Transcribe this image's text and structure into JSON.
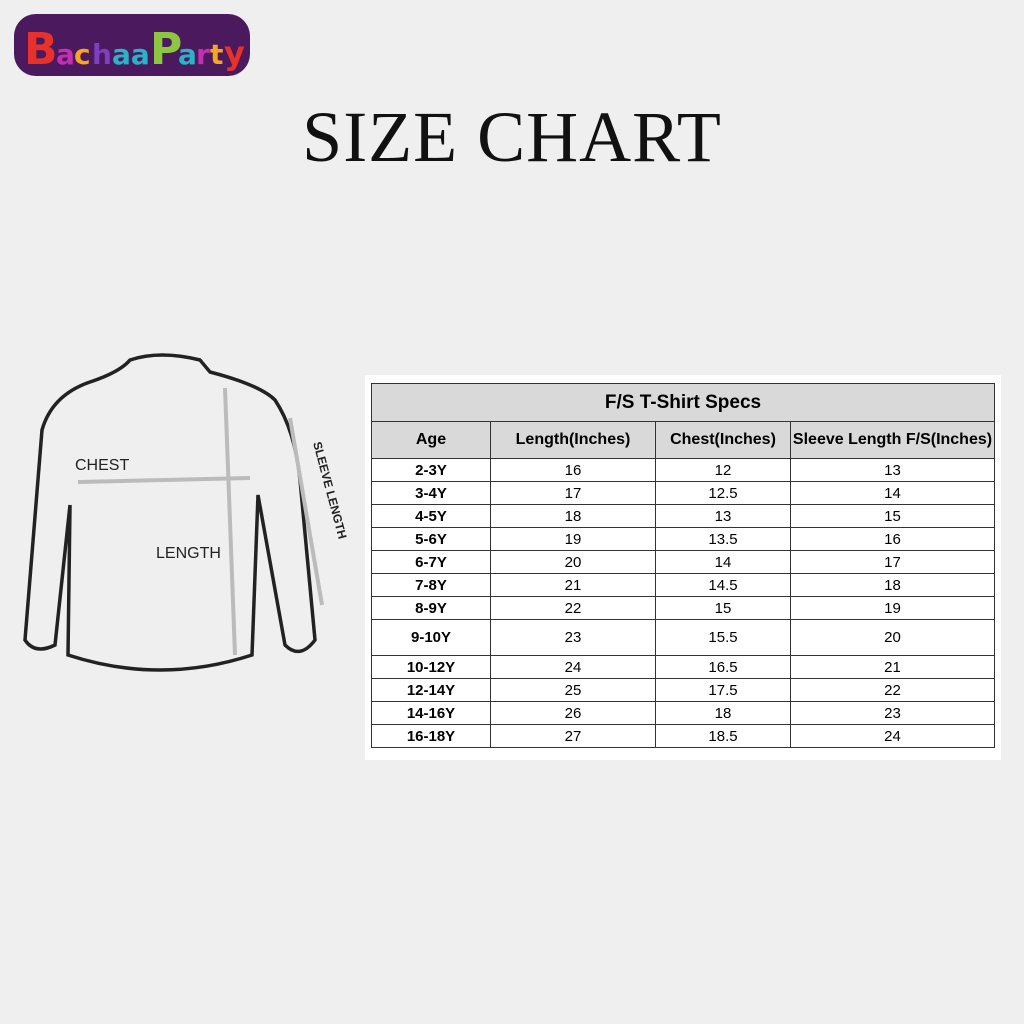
{
  "logo": {
    "text": "BachaaParty",
    "colors": [
      "#e8312a",
      "#c42fb0",
      "#7f3fbf",
      "#f5a623",
      "#8dc63f",
      "#2ab3c7",
      "#4b1a5e"
    ]
  },
  "title": "SIZE CHART",
  "diagram": {
    "chest": "CHEST",
    "length": "LENGTH",
    "sleeve": "SLEEVE LENGTH"
  },
  "table": {
    "title": "F/S T-Shirt Specs",
    "headers": [
      "Age",
      "Length(Inches)",
      "Chest(Inches)",
      "Sleeve Length F/S(Inches)"
    ],
    "rows": [
      [
        "2-3Y",
        "16",
        "12",
        "13"
      ],
      [
        "3-4Y",
        "17",
        "12.5",
        "14"
      ],
      [
        "4-5Y",
        "18",
        "13",
        "15"
      ],
      [
        "5-6Y",
        "19",
        "13.5",
        "16"
      ],
      [
        "6-7Y",
        "20",
        "14",
        "17"
      ],
      [
        "7-8Y",
        "21",
        "14.5",
        "18"
      ],
      [
        "8-9Y",
        "22",
        "15",
        "19"
      ],
      [
        "9-10Y",
        "23",
        "15.5",
        "20"
      ],
      [
        "10-12Y",
        "24",
        "16.5",
        "21"
      ],
      [
        "12-14Y",
        "25",
        "17.5",
        "22"
      ],
      [
        "14-16Y",
        "26",
        "18",
        "23"
      ],
      [
        "16-18Y",
        "27",
        "18.5",
        "24"
      ]
    ]
  }
}
